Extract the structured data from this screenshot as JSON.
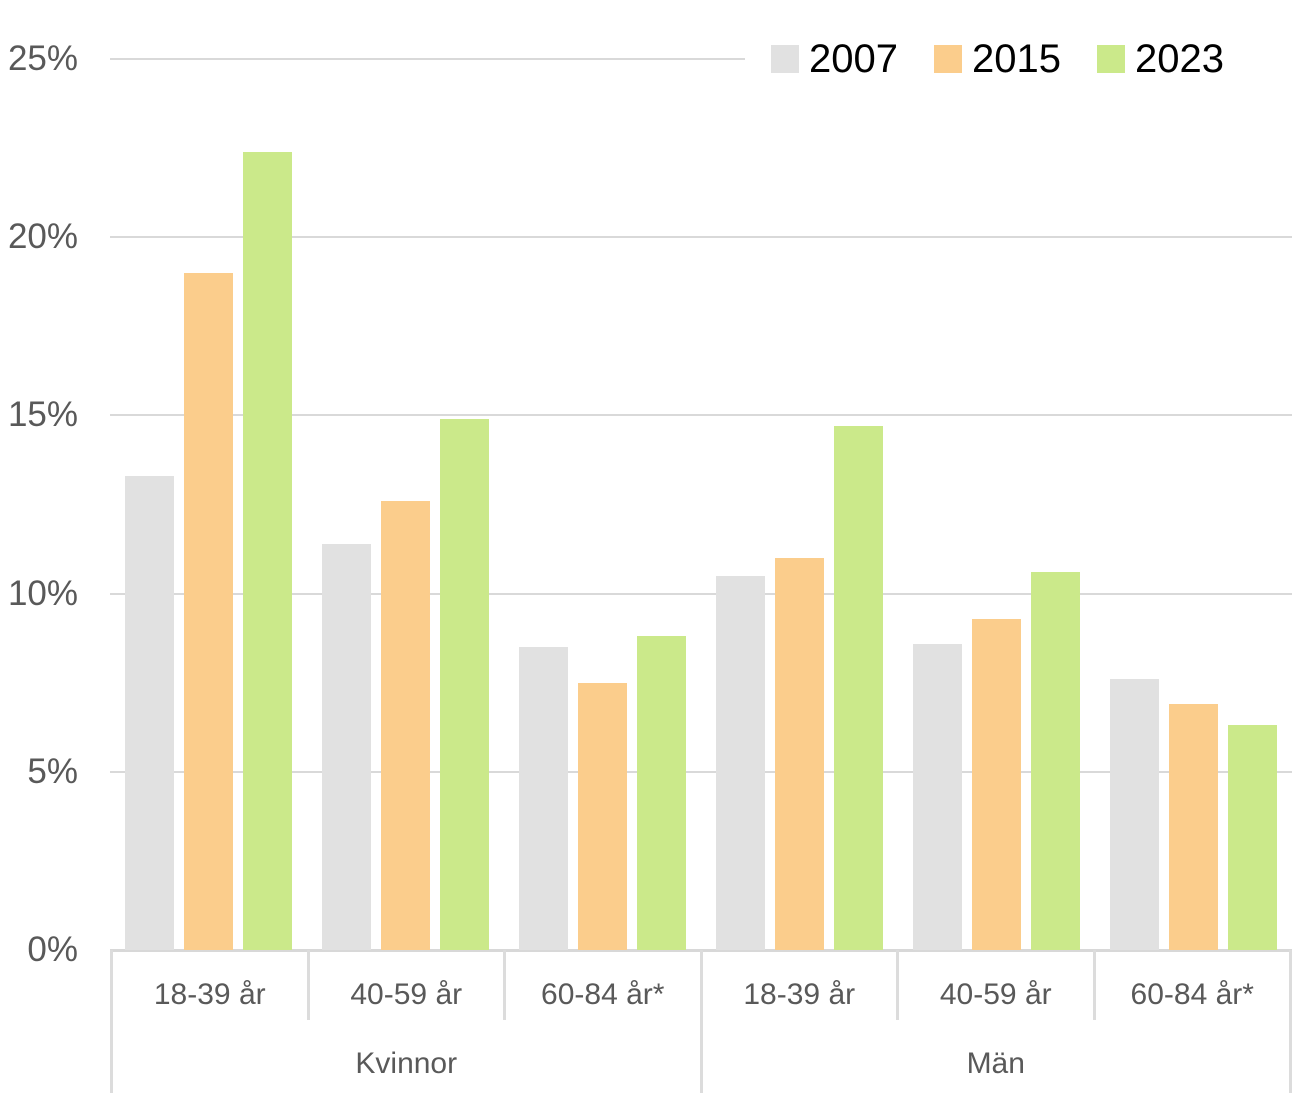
{
  "chart_data": {
    "type": "bar",
    "title": "",
    "xlabel": "",
    "ylabel": "",
    "ylim": [
      0,
      25
    ],
    "grid": true,
    "categories": [
      "Kvinnor 18-39 år",
      "Kvinnor 40-59 år",
      "Kvinnor 60-84 år*",
      "Män 18-39 år",
      "Män 40-59 år",
      "Män 60-84 år*"
    ],
    "series": [
      {
        "name": "2007",
        "color": "#E1E1E1",
        "values": [
          13.3,
          11.4,
          8.5,
          10.5,
          8.6,
          7.6
        ]
      },
      {
        "name": "2015",
        "color": "#FBCD8C",
        "values": [
          19.0,
          12.6,
          7.5,
          11.0,
          9.3,
          6.9
        ]
      },
      {
        "name": "2023",
        "color": "#CBE98A",
        "values": [
          22.4,
          14.9,
          8.8,
          14.7,
          10.6,
          6.3
        ]
      }
    ],
    "y_axis": {
      "min": 0,
      "max": 25,
      "step": 5,
      "tick_labels": [
        "0%",
        "5%",
        "10%",
        "15%",
        "20%",
        "25%"
      ]
    },
    "x_axis": {
      "age_labels": [
        "18-39 år",
        "40-59 år",
        "60-84 år*",
        "18-39 år",
        "40-59 år",
        "60-84 år*"
      ],
      "gender_labels": [
        "Kvinnor",
        "Män"
      ]
    },
    "legend": {
      "position": "top-right",
      "entries": [
        "2007",
        "2015",
        "2023"
      ]
    },
    "colors": {
      "grid": "#D9D9D9",
      "axis_line": "#D8D8D8",
      "axis_text": "#595959",
      "legend_text": "#000000",
      "background": "#FFFFFF"
    }
  }
}
